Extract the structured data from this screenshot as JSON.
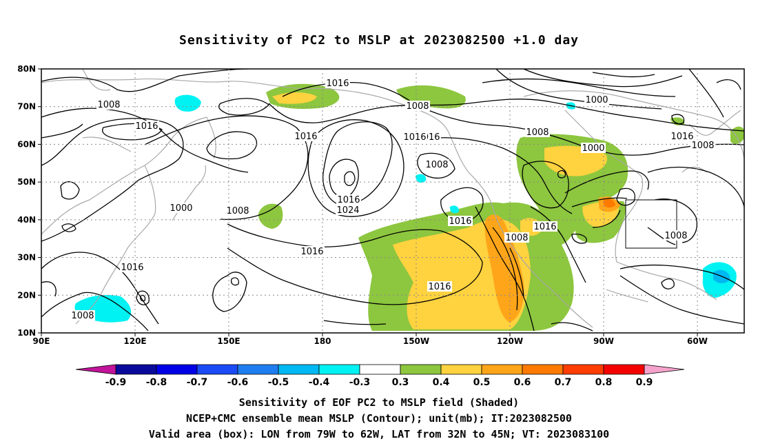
{
  "title": "Sensitivity of PC2 to MSLP at 2023082500 +1.0 day",
  "map": {
    "lat_ticks": [
      "80N",
      "70N",
      "60N",
      "50N",
      "40N",
      "30N",
      "20N",
      "10N"
    ],
    "lon_ticks": [
      "90E",
      "120E",
      "150E",
      "180",
      "150W",
      "120W",
      "90W",
      "60W"
    ],
    "contour_labels": [
      "1016",
      "1008",
      "1016",
      "1016",
      "1008",
      "1000",
      "1016",
      "1008",
      "1016",
      "1000",
      "1008",
      "1016",
      "1024",
      "1000",
      "1008",
      "1016",
      "1008",
      "1016",
      "1016",
      "1008",
      "1016",
      "1008",
      "1016",
      "1008",
      "1016"
    ],
    "valid_box": {
      "lon_from": "79W",
      "lon_to": "62W",
      "lat_from": "32N",
      "lat_to": "45N"
    }
  },
  "colorbar": {
    "labels": [
      "-0.9",
      "-0.8",
      "-0.7",
      "-0.6",
      "-0.5",
      "-0.4",
      "-0.3",
      "0.3",
      "0.4",
      "0.5",
      "0.6",
      "0.7",
      "0.8",
      "0.9"
    ],
    "colors": [
      "#0a0a9a",
      "#0000e6",
      "#1a4bf5",
      "#1e7ef0",
      "#00b8f2",
      "#00f2f2",
      "#ffffff",
      "#8dc63f",
      "#ffd23f",
      "#ffa519",
      "#ff7a00",
      "#ff3d00",
      "#f50000"
    ],
    "low_end_color": "#c2149a",
    "high_end_color": "#f5a3cc"
  },
  "captions": [
    "Sensitivity of EOF PC2 to MSLP field (Shaded)",
    "NCEP+CMC ensemble mean MSLP (Contour); unit(mb); IT:2023082500",
    "Valid area (box): LON from 79W to 62W, LAT from 32N to 45N; VT: 2023083100"
  ]
}
